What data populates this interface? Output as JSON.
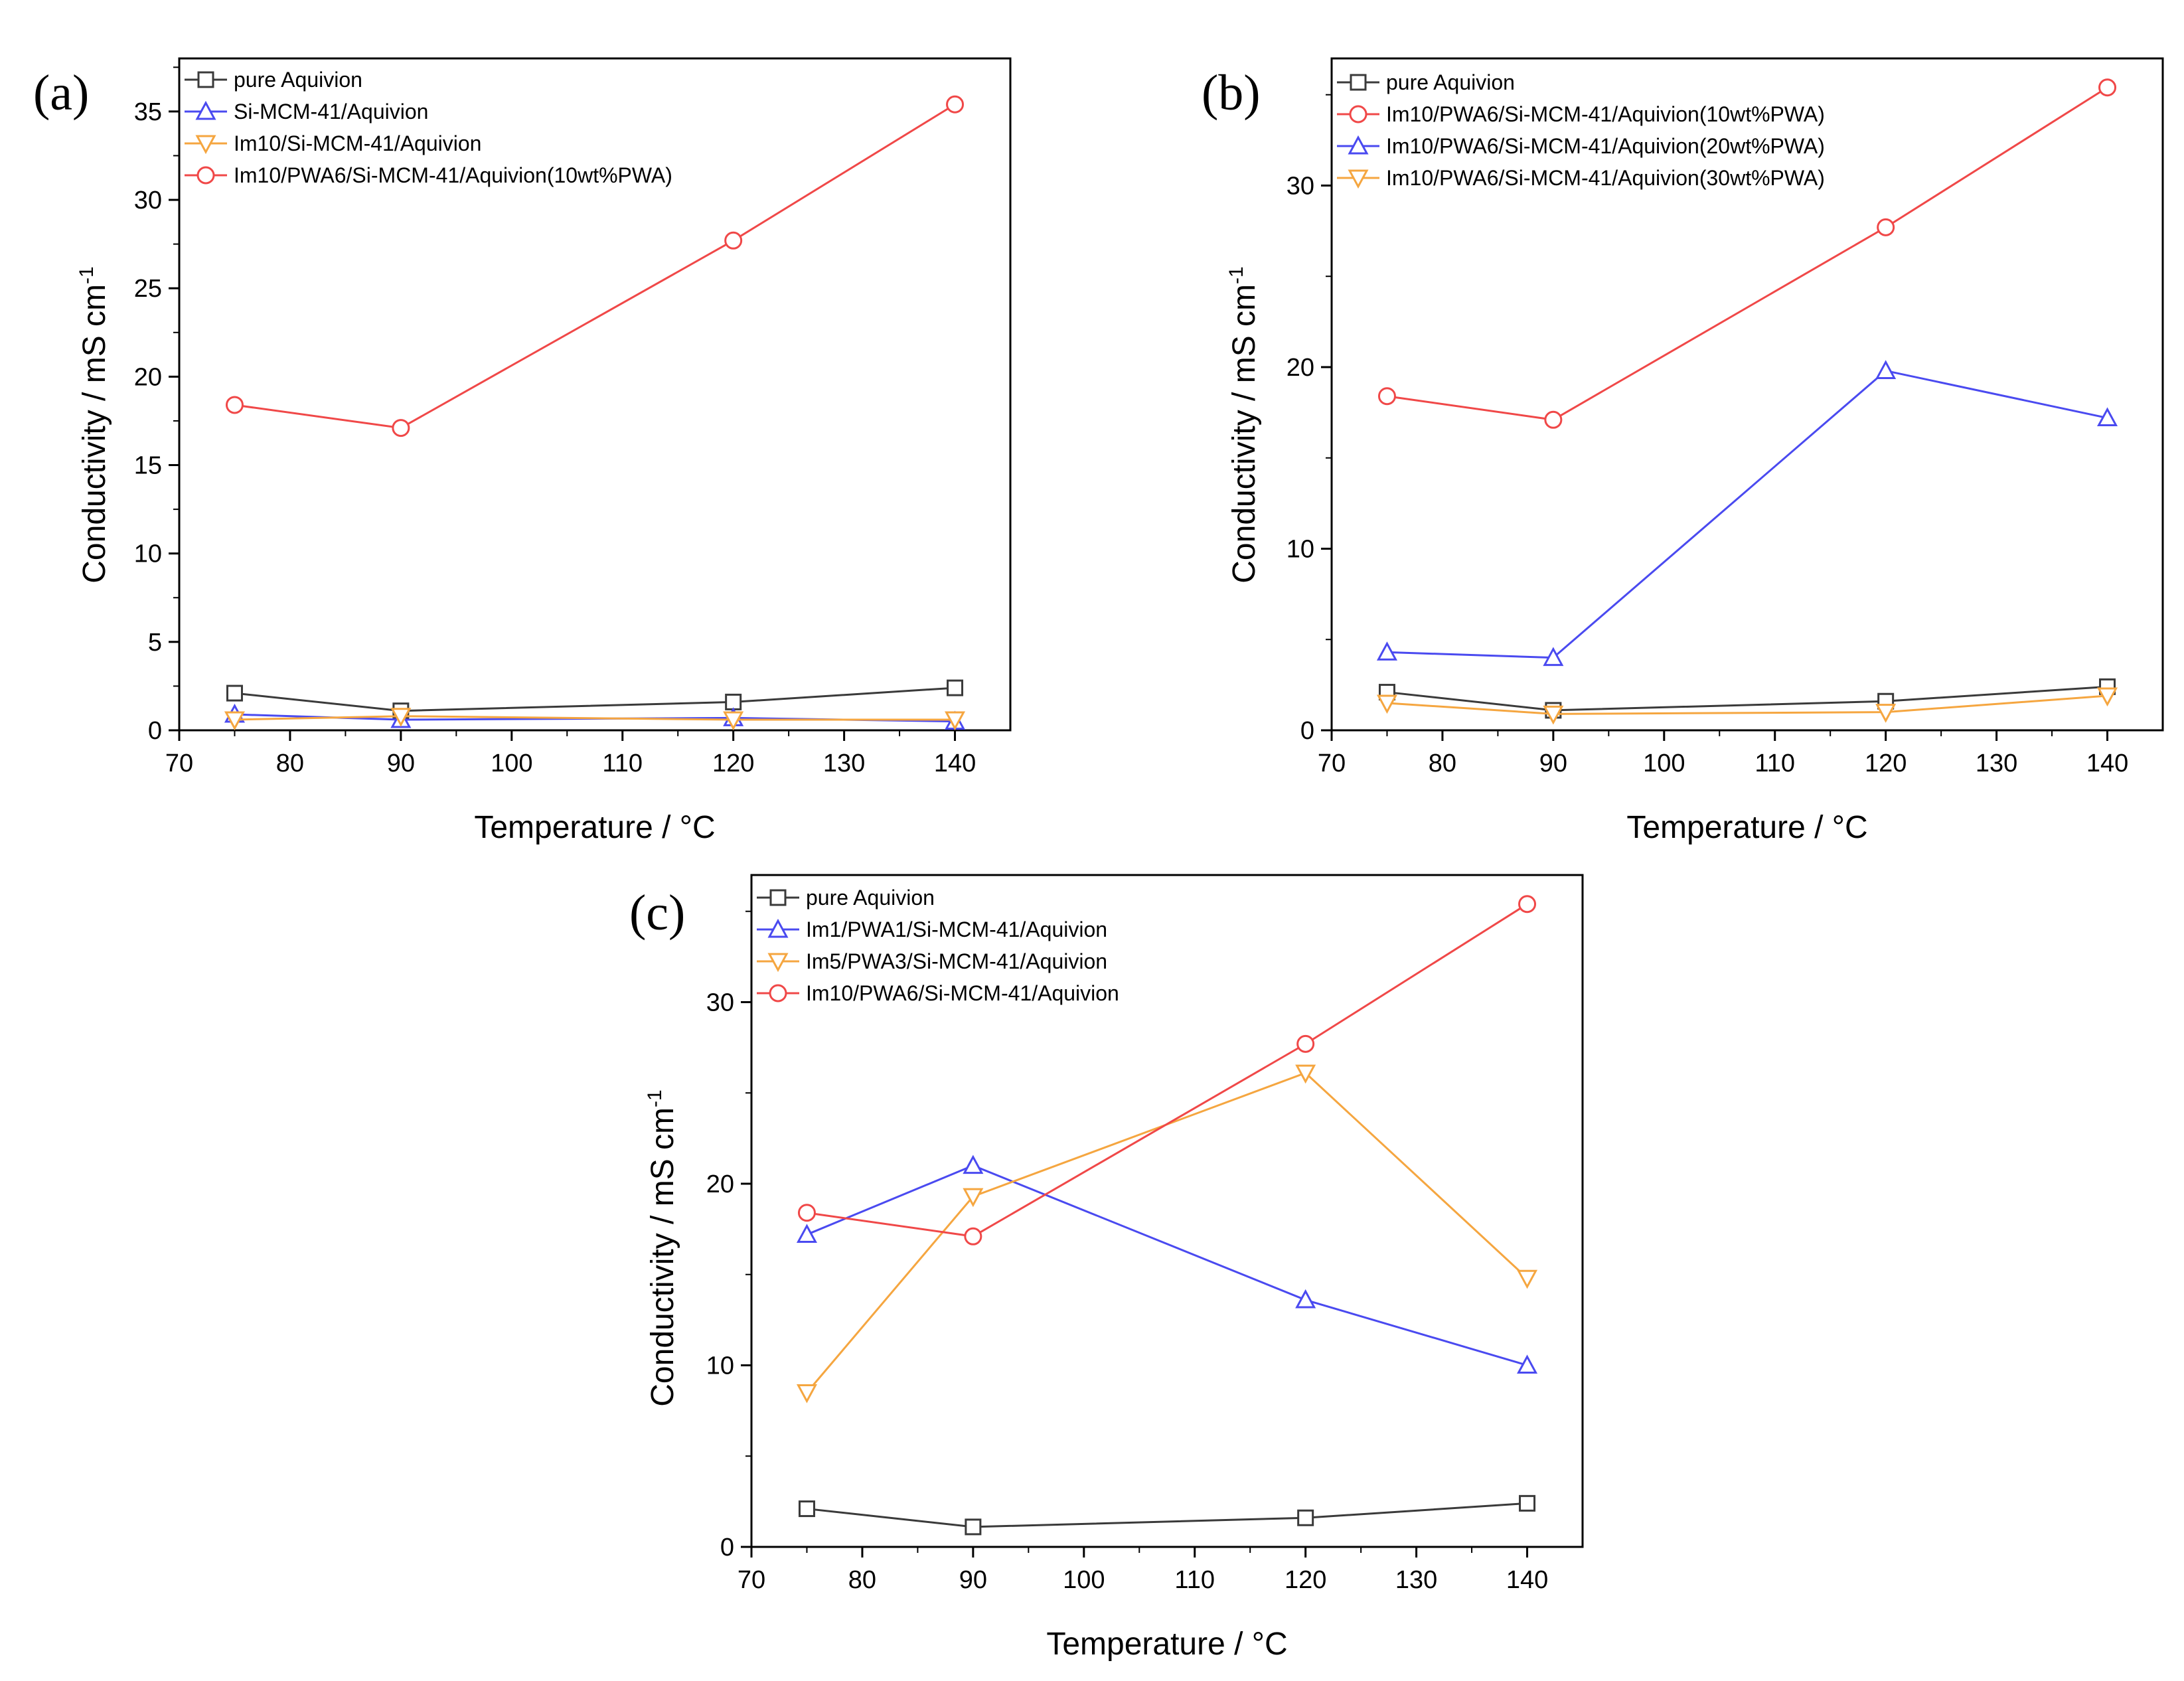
{
  "figure": {
    "colors": {
      "black": "#3a3a3a",
      "blue": "#4a4af0",
      "orange": "#f5a640",
      "red": "#f04848"
    }
  },
  "chart_data": [
    {
      "id": "a",
      "panel_label": "(a)",
      "type": "line",
      "xlabel": "Temperature / °C",
      "ylabel": "Conductivity / mS cm-1",
      "xlim": [
        70,
        145
      ],
      "ylim": [
        0,
        38
      ],
      "xticks": [
        70,
        80,
        90,
        100,
        110,
        120,
        130,
        140
      ],
      "yticks": [
        0,
        5,
        10,
        15,
        20,
        25,
        30,
        35
      ],
      "legend_position": "top-left",
      "series": [
        {
          "name": "pure Aquivion",
          "marker": "square",
          "color": "#3a3a3a",
          "x": [
            75,
            90,
            120,
            140
          ],
          "y": [
            2.1,
            1.1,
            1.6,
            2.4
          ]
        },
        {
          "name": "Si-MCM-41/Aquivion",
          "marker": "triangle-up",
          "color": "#4a4af0",
          "x": [
            75,
            90,
            120,
            140
          ],
          "y": [
            0.9,
            0.6,
            0.7,
            0.5
          ]
        },
        {
          "name": "Im10/Si-MCM-41/Aquivion",
          "marker": "triangle-down",
          "color": "#f5a640",
          "x": [
            75,
            90,
            120,
            140
          ],
          "y": [
            0.6,
            0.8,
            0.6,
            0.6
          ]
        },
        {
          "name": "Im10/PWA6/Si-MCM-41/Aquivion(10wt%PWA)",
          "marker": "circle",
          "color": "#f04848",
          "x": [
            75,
            90,
            120,
            140
          ],
          "y": [
            18.4,
            17.1,
            27.7,
            35.4
          ]
        }
      ]
    },
    {
      "id": "b",
      "panel_label": "(b)",
      "type": "line",
      "xlabel": "Temperature / °C",
      "ylabel": "Conductivity / mS cm-1",
      "xlim": [
        70,
        145
      ],
      "ylim": [
        0,
        37
      ],
      "xticks": [
        70,
        80,
        90,
        100,
        110,
        120,
        130,
        140
      ],
      "yticks": [
        0,
        10,
        20,
        30
      ],
      "legend_position": "top-left",
      "series": [
        {
          "name": "pure Aquivion",
          "marker": "square",
          "color": "#3a3a3a",
          "x": [
            75,
            90,
            120,
            140
          ],
          "y": [
            2.1,
            1.1,
            1.6,
            2.4
          ]
        },
        {
          "name": "Im10/PWA6/Si-MCM-41/Aquivion(10wt%PWA)",
          "marker": "circle",
          "color": "#f04848",
          "x": [
            75,
            90,
            120,
            140
          ],
          "y": [
            18.4,
            17.1,
            27.7,
            35.4
          ]
        },
        {
          "name": "Im10/PWA6/Si-MCM-41/Aquivion(20wt%PWA)",
          "marker": "triangle-up",
          "color": "#4a4af0",
          "x": [
            75,
            90,
            120,
            140
          ],
          "y": [
            4.3,
            4.0,
            19.8,
            17.2
          ]
        },
        {
          "name": "Im10/PWA6/Si-MCM-41/Aquivion(30wt%PWA)",
          "marker": "triangle-down",
          "color": "#f5a640",
          "x": [
            75,
            90,
            120,
            140
          ],
          "y": [
            1.5,
            0.9,
            1.0,
            1.9
          ]
        }
      ]
    },
    {
      "id": "c",
      "panel_label": "(c)",
      "type": "line",
      "xlabel": "Temperature / °C",
      "ylabel": "Conductivity / mS cm-1",
      "xlim": [
        70,
        145
      ],
      "ylim": [
        0,
        37
      ],
      "xticks": [
        70,
        80,
        90,
        100,
        110,
        120,
        130,
        140
      ],
      "yticks": [
        0,
        10,
        20,
        30
      ],
      "legend_position": "top-left",
      "series": [
        {
          "name": "pure Aquivion",
          "marker": "square",
          "color": "#3a3a3a",
          "x": [
            75,
            90,
            120,
            140
          ],
          "y": [
            2.1,
            1.1,
            1.6,
            2.4
          ]
        },
        {
          "name": "Im1/PWA1/Si-MCM-41/Aquivion",
          "marker": "triangle-up",
          "color": "#4a4af0",
          "x": [
            75,
            90,
            120,
            140
          ],
          "y": [
            17.2,
            21.0,
            13.6,
            10.0
          ]
        },
        {
          "name": "Im5/PWA3/Si-MCM-41/Aquivion",
          "marker": "triangle-down",
          "color": "#f5a640",
          "x": [
            75,
            90,
            120,
            140
          ],
          "y": [
            8.5,
            19.3,
            26.1,
            14.8
          ]
        },
        {
          "name": "Im10/PWA6/Si-MCM-41/Aquivion",
          "marker": "circle",
          "color": "#f04848",
          "x": [
            75,
            90,
            120,
            140
          ],
          "y": [
            18.4,
            17.1,
            27.7,
            35.4
          ]
        }
      ]
    }
  ]
}
